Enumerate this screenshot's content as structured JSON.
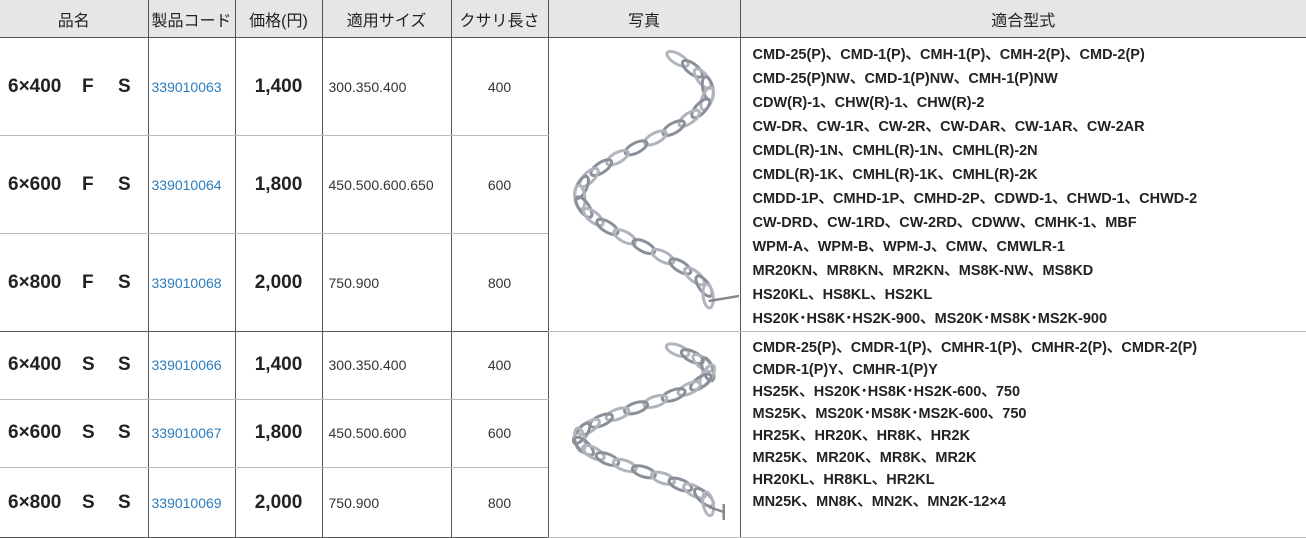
{
  "header": [
    "品名",
    "製品コード",
    "価格(円)",
    "適用サイズ",
    "クサリ長さ",
    "写真",
    "適合型式"
  ],
  "groups": [
    {
      "rows": [
        {
          "name": [
            "6×400",
            "F",
            "S"
          ],
          "code": "339010063",
          "price": "1,400",
          "size": "300.350.400",
          "length": "400"
        },
        {
          "name": [
            "6×600",
            "F",
            "S"
          ],
          "code": "339010064",
          "price": "1,800",
          "size": "450.500.600.650",
          "length": "600"
        },
        {
          "name": [
            "6×800",
            "F",
            "S"
          ],
          "code": "339010068",
          "price": "2,000",
          "size": "750.900",
          "length": "800"
        }
      ],
      "models": [
        "CMD-25(P)、CMD-1(P)、CMH-1(P)、CMH-2(P)、CMD-2(P)",
        "CMD-25(P)NW、CMD-1(P)NW、CMH-1(P)NW",
        "CDW(R)-1、CHW(R)-1、CHW(R)-2",
        "CW-DR、CW-1R、CW-2R、CW-DAR、CW-1AR、CW-2AR",
        "CMDL(R)-1N、CMHL(R)-1N、CMHL(R)-2N",
        "CMDL(R)-1K、CMHL(R)-1K、CMHL(R)-2K",
        "CMDD-1P、CMHD-1P、CMHD-2P、CDWD-1、CHWD-1、CHWD-2",
        "CW-DRD、CW-1RD、CW-2RD、CDWW、CMHK-1、MBF",
        "WPM-A、WPM-B、WPM-J、CMW、CMWLR-1",
        "MR20KN、MR8KN、MR2KN、MS8K-NW、MS8KD",
        "HS20KL、HS8KL、HS2KL",
        "HS20K･HS8K･HS2K-900、MS20K･MS8K･MS2K-900"
      ]
    },
    {
      "rows": [
        {
          "name": [
            "6×400",
            "S",
            "S"
          ],
          "code": "339010066",
          "price": "1,400",
          "size": "300.350.400",
          "length": "400"
        },
        {
          "name": [
            "6×600",
            "S",
            "S"
          ],
          "code": "339010067",
          "price": "1,800",
          "size": "450.500.600",
          "length": "600"
        },
        {
          "name": [
            "6×800",
            "S",
            "S"
          ],
          "code": "339010069",
          "price": "2,000",
          "size": "750.900",
          "length": "800"
        }
      ],
      "models": [
        "CMDR-25(P)、CMDR-1(P)、CMHR-1(P)、CMHR-2(P)、CMDR-2(P)",
        "CMDR-1(P)Y、CMHR-1(P)Y",
        "HS25K、HS20K･HS8K･HS2K-600、750",
        "MS25K、MS20K･MS8K･MS2K-600、750",
        "HR25K、HR20K、HR8K、HR2K",
        "MR25K、MR20K、MR8K、MR2K",
        "HR20KL、HR8KL、HR2KL",
        "MN25K、MN8K、MN2K、MN2K-12×4"
      ]
    }
  ]
}
